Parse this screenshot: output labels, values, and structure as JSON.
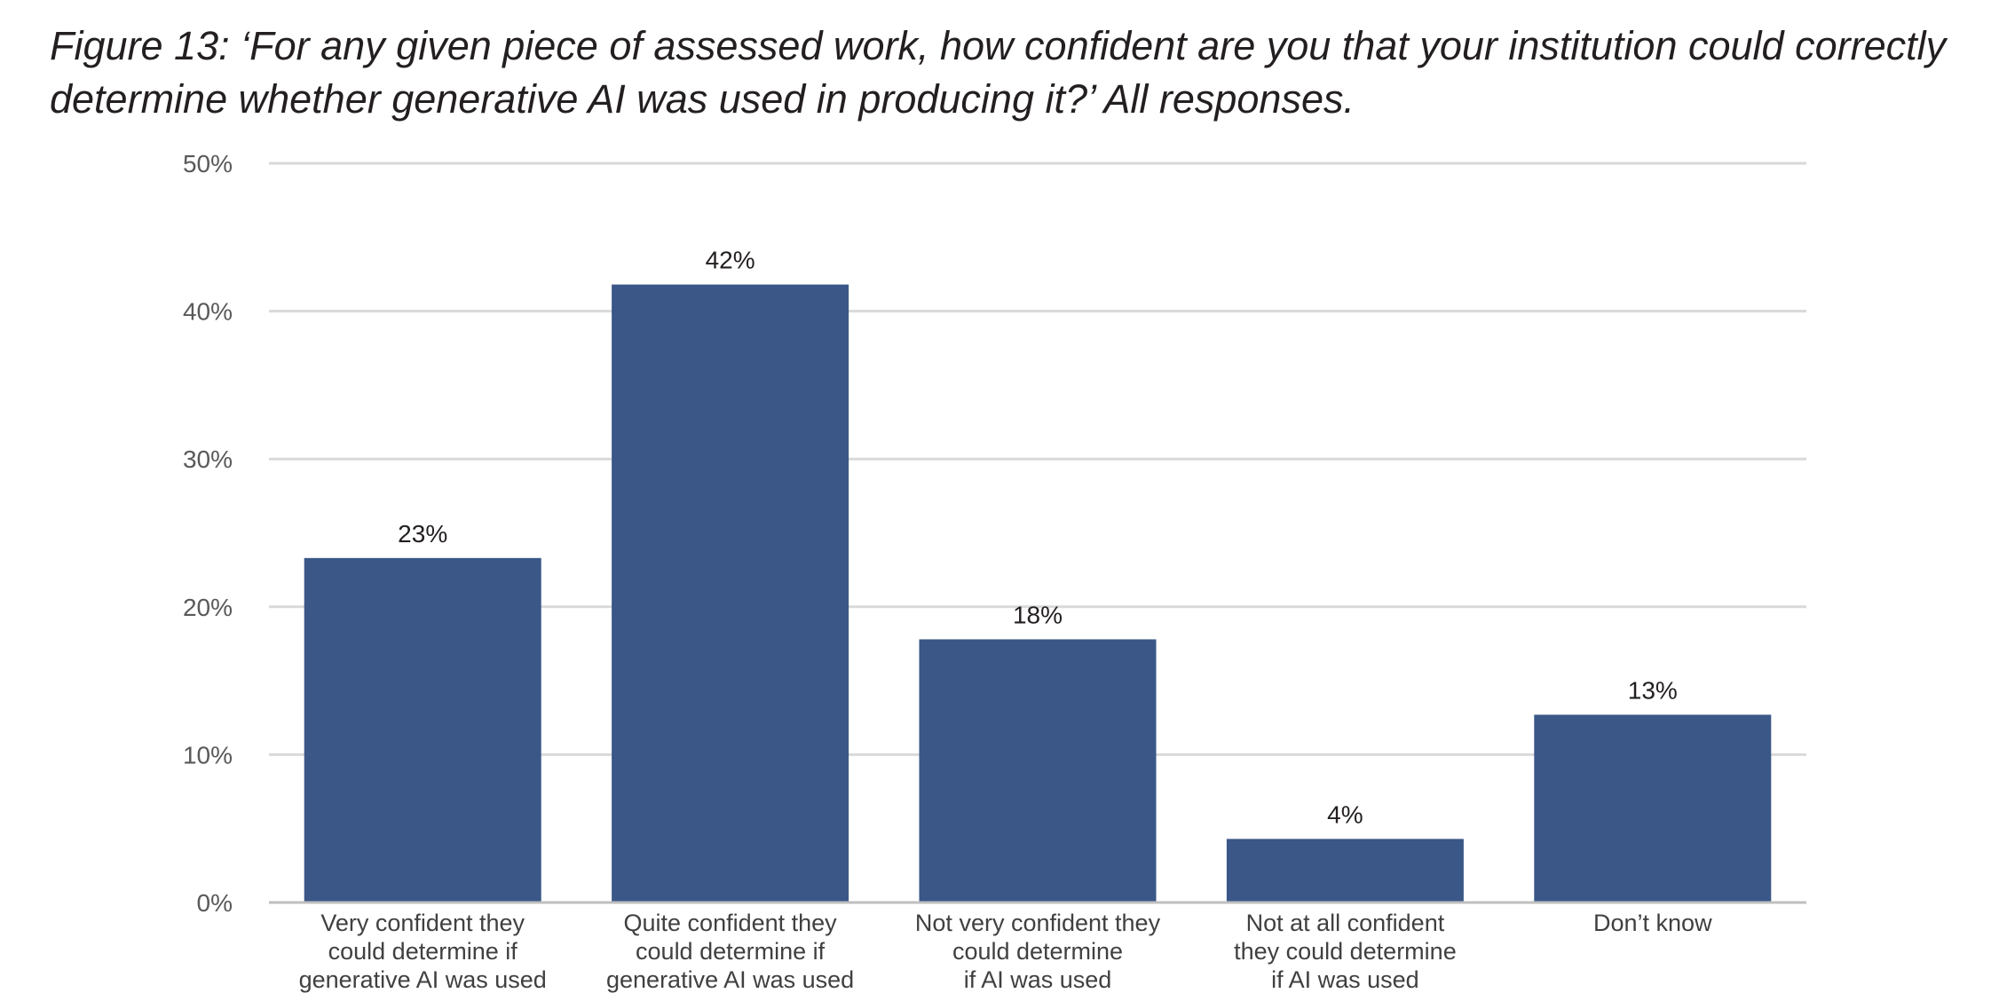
{
  "figure": {
    "title": "Figure 13: ‘For any given piece of assessed work, how confident are you that your institution could correctly determine whether generative AI was used in producing it?’ All responses."
  },
  "chart_data": {
    "type": "bar",
    "title": "Figure 13: ‘For any given piece of assessed work, how confident are you that your institution could correctly determine whether generative AI was used in producing it?’ All responses.",
    "xlabel": "",
    "ylabel": "",
    "ylim": [
      0,
      50
    ],
    "yticks": [
      0,
      10,
      20,
      30,
      40,
      50
    ],
    "ytick_labels": [
      "0%",
      "10%",
      "20%",
      "30%",
      "40%",
      "50%"
    ],
    "grid": true,
    "legend": "none",
    "bar_color": "#3a5787",
    "categories": [
      [
        "Very confident they",
        "could determine if",
        "generative AI was used"
      ],
      [
        "Quite confident they",
        "could determine if",
        "generative AI was used"
      ],
      [
        "Not very confident they",
        "could determine",
        "if AI was used"
      ],
      [
        "Not at all confident",
        "they could determine",
        "if AI was used"
      ],
      [
        "Don’t know"
      ]
    ],
    "values": [
      23.3,
      41.8,
      17.8,
      4.3,
      12.7
    ],
    "data_labels": [
      "23%",
      "42%",
      "18%",
      "4%",
      "13%"
    ]
  }
}
